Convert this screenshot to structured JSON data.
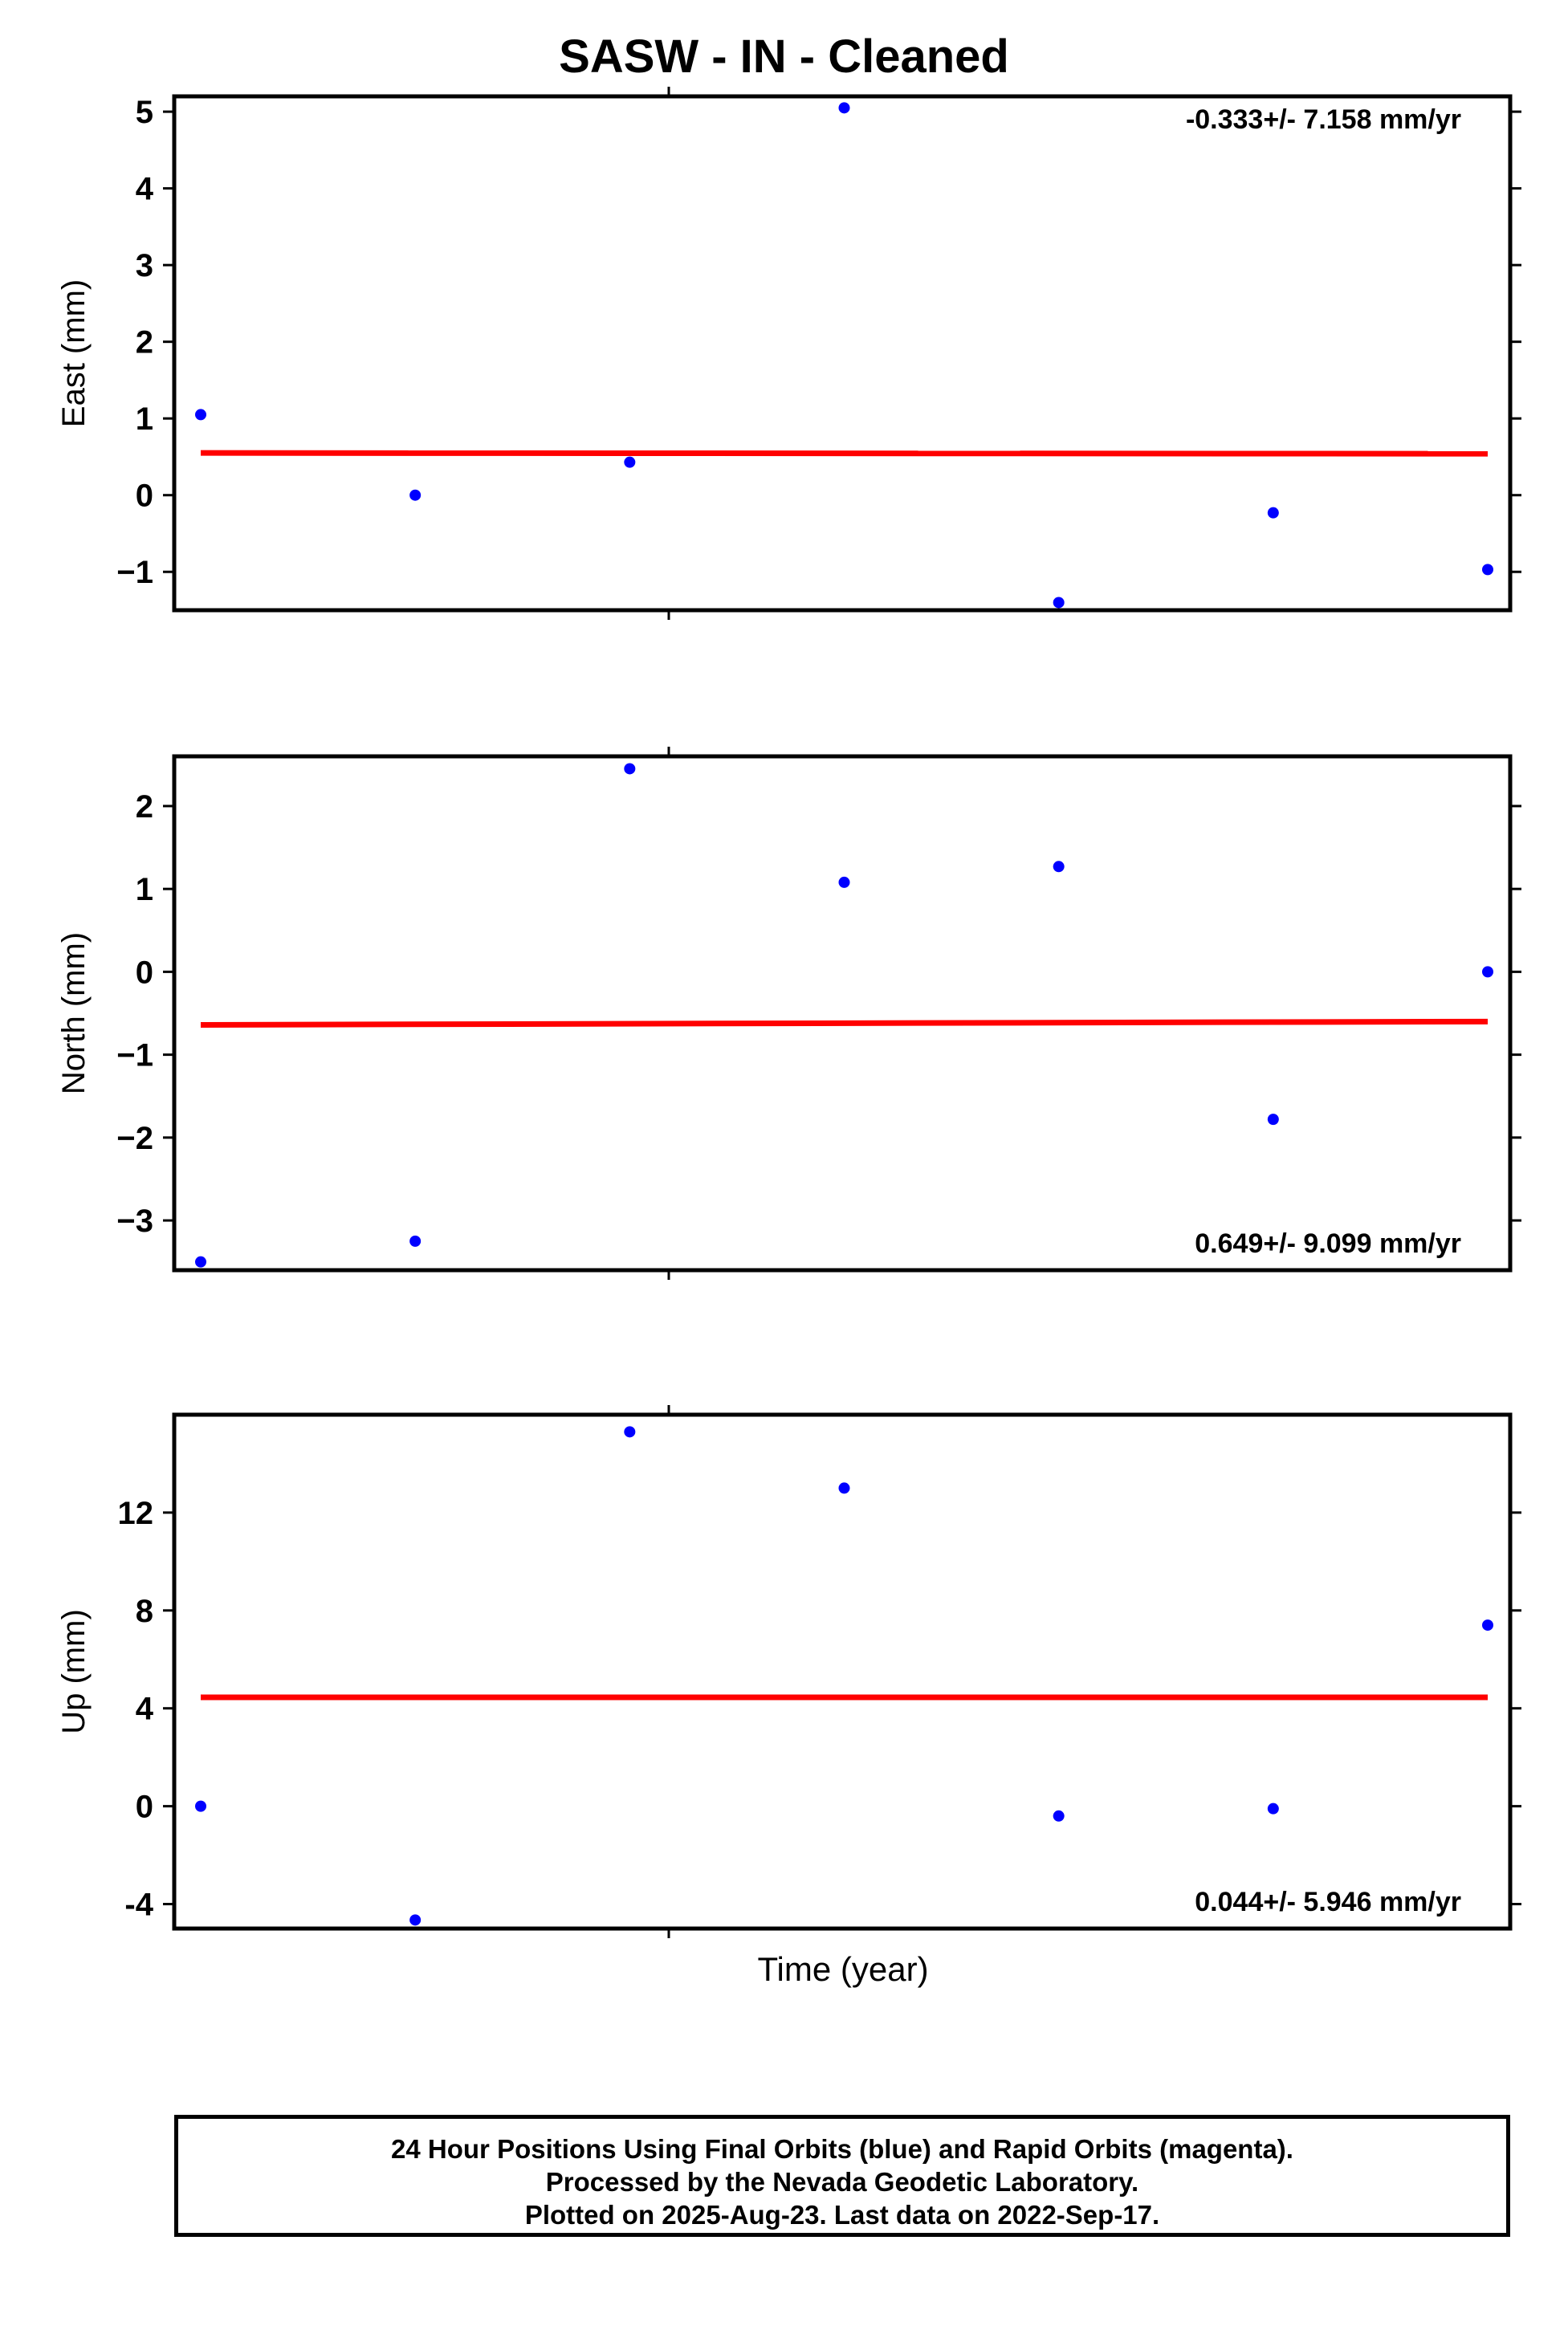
{
  "title": "SASW  - IN - Cleaned",
  "xlabel": "Time (year)",
  "footer": {
    "line1": "24 Hour Positions Using Final Orbits (blue) and Rapid Orbits (magenta).",
    "line2": "Processed by the Nevada Geodetic Laboratory.",
    "line3": "Plotted on 2025-Aug-23. Last data on 2022-Sep-17."
  },
  "colors": {
    "points": "#0000ff",
    "fit": "#ff0000",
    "frame": "#000000"
  },
  "chart_data": [
    {
      "type": "scatter",
      "ylabel": "East (mm)",
      "rate_label": "-0.333+/- 7.158 mm/yr",
      "rate_position": "top-right",
      "ylim": [
        -1.5,
        5.2
      ],
      "yticks": [
        5,
        4,
        3,
        2,
        1,
        0,
        -1
      ],
      "ytick_labels": [
        "5",
        "4",
        "3",
        "2",
        "1",
        "0",
        "−1"
      ],
      "x": [
        0,
        1,
        2,
        3,
        4,
        5,
        6
      ],
      "y": [
        1.05,
        0.0,
        0.43,
        5.05,
        -1.4,
        -0.23,
        -0.97
      ],
      "fit": [
        0.55,
        0.54
      ]
    },
    {
      "type": "scatter",
      "ylabel": "North (mm)",
      "rate_label": "0.649+/- 9.099 mm/yr",
      "rate_position": "bottom-right",
      "ylim": [
        -3.6,
        2.6
      ],
      "yticks": [
        2,
        1,
        0,
        -1,
        -2,
        -3
      ],
      "ytick_labels": [
        "2",
        "1",
        "0",
        "−1",
        "−2",
        "−3"
      ],
      "x": [
        0,
        1,
        2,
        3,
        4,
        5,
        6
      ],
      "y": [
        -3.5,
        -3.25,
        2.45,
        1.08,
        1.27,
        -1.78,
        0.0
      ],
      "fit": [
        -0.64,
        -0.6
      ]
    },
    {
      "type": "scatter",
      "ylabel": "Up (mm)",
      "rate_label": "0.044+/- 5.946 mm/yr",
      "rate_position": "bottom-right",
      "ylim": [
        -5,
        16
      ],
      "yticks": [
        12,
        8,
        4,
        0,
        -4
      ],
      "ytick_labels": [
        "12",
        "8",
        "4",
        "0",
        "-4"
      ],
      "x": [
        0,
        1,
        2,
        3,
        4,
        5,
        6
      ],
      "y": [
        0.0,
        -4.65,
        15.3,
        13.0,
        -0.4,
        -0.1,
        7.4
      ],
      "fit": [
        4.45,
        4.45
      ]
    }
  ]
}
